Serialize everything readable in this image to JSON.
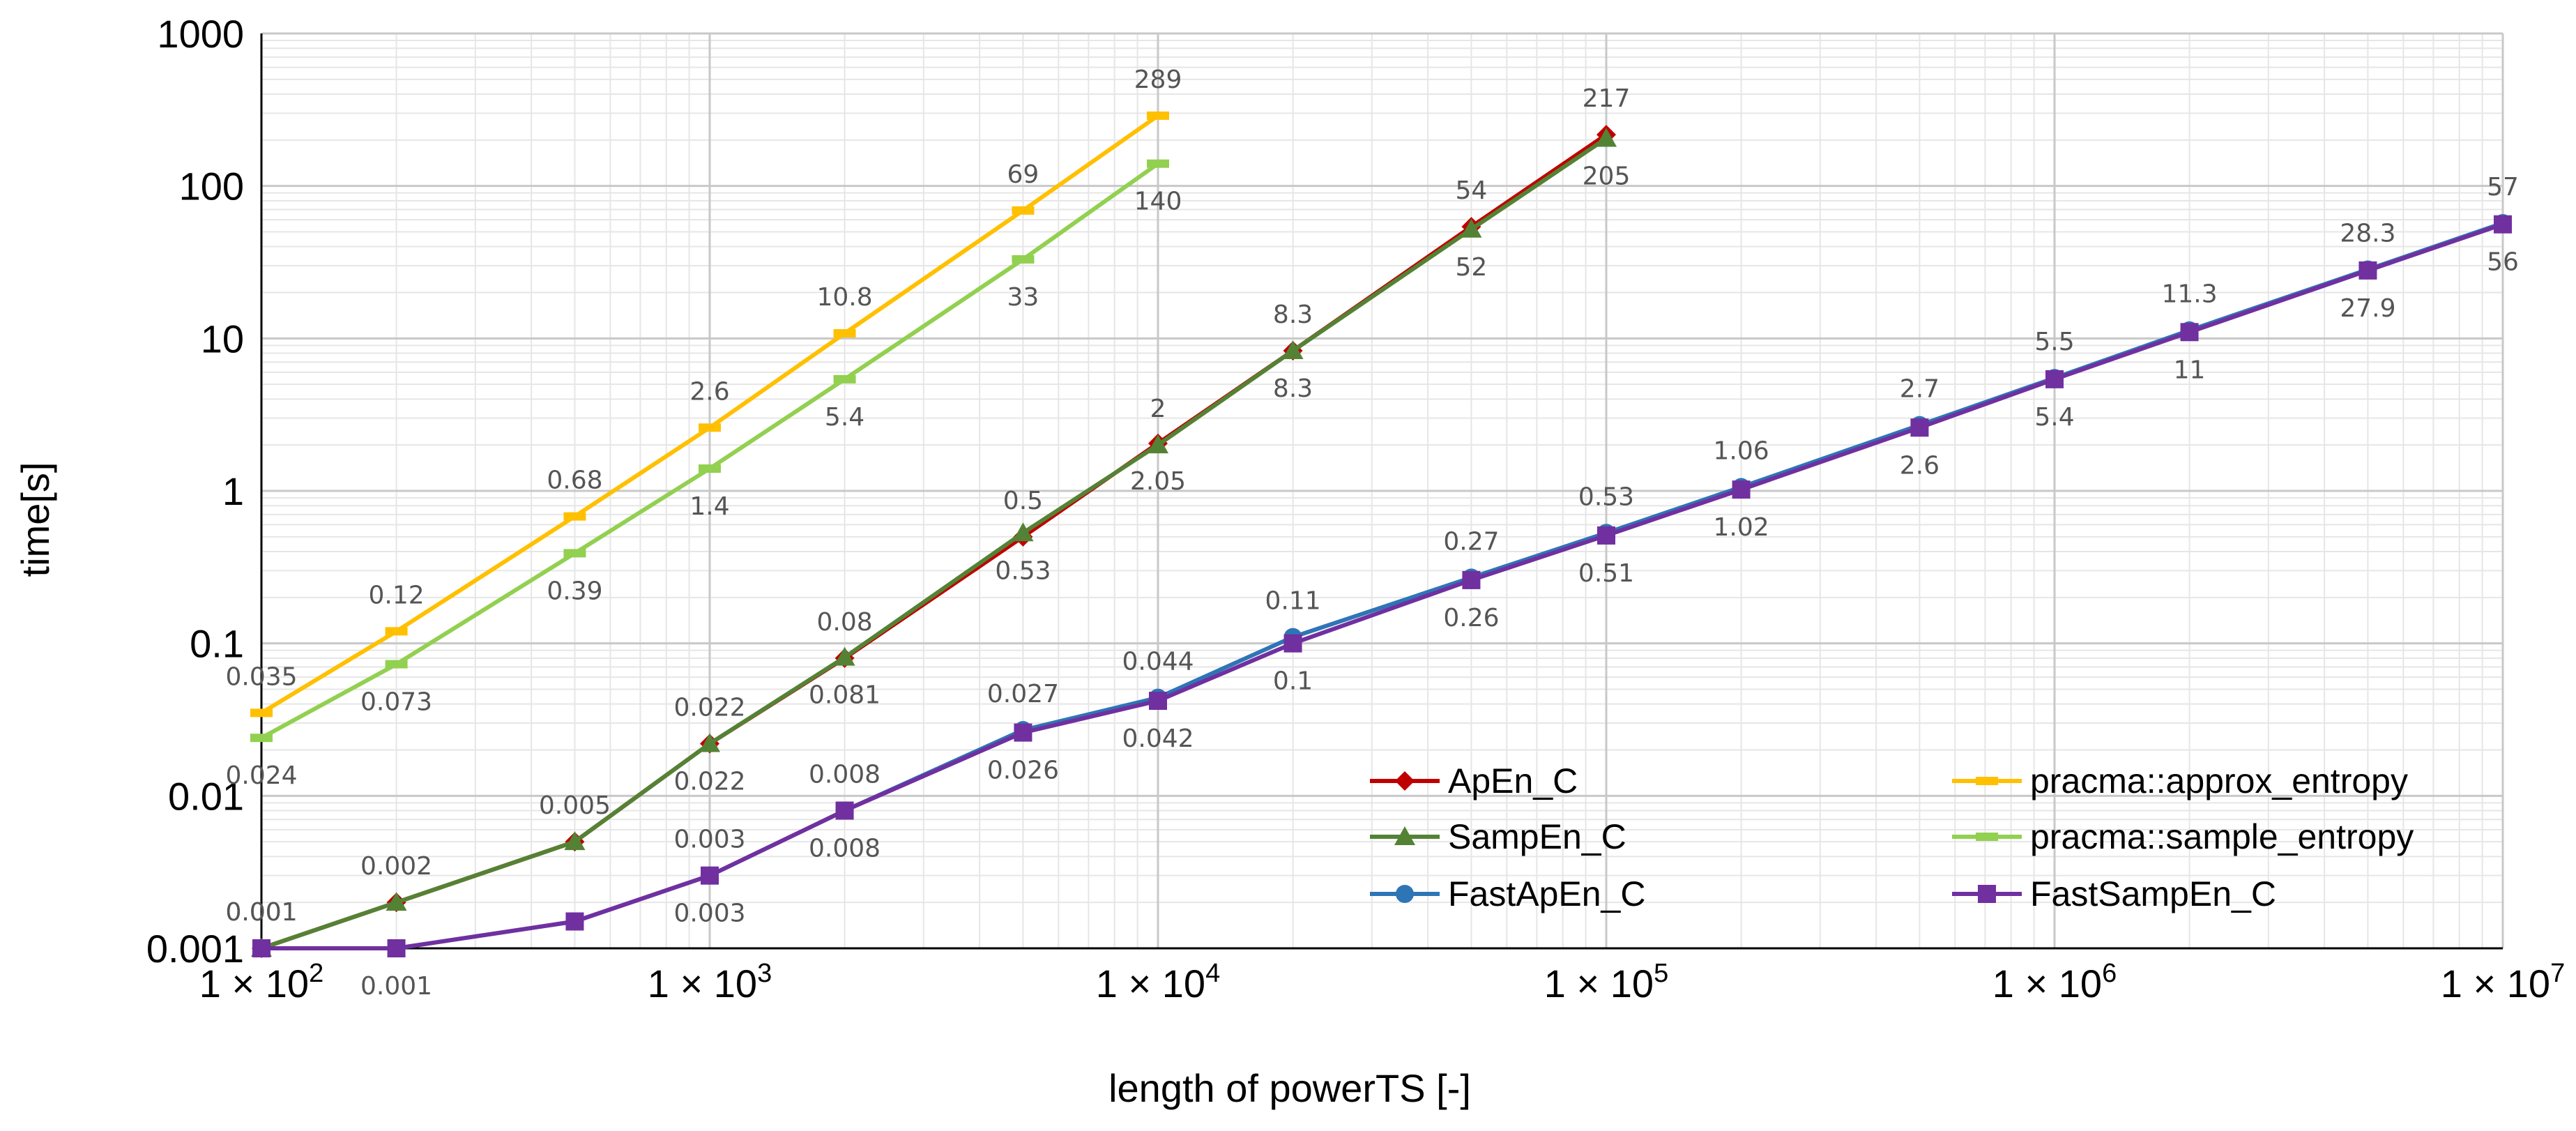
{
  "chart_data": {
    "type": "line",
    "title": "",
    "xlabel": "length of powerTS [-]",
    "ylabel": "time[s]",
    "xscale": "log",
    "yscale": "log",
    "xlim": [
      100,
      10000000
    ],
    "ylim": [
      0.001,
      1000
    ],
    "grid": true,
    "legend_position": "bottom-right",
    "y_ticks": [
      {
        "value": 0.001,
        "label": "0.001"
      },
      {
        "value": 0.01,
        "label": "0.01"
      },
      {
        "value": 0.1,
        "label": "0.1"
      },
      {
        "value": 1,
        "label": "1"
      },
      {
        "value": 10,
        "label": "10"
      },
      {
        "value": 100,
        "label": "100"
      },
      {
        "value": 1000,
        "label": "1000"
      }
    ],
    "x_ticks": [
      {
        "value": 100,
        "label": "1 × 10",
        "exp": "2"
      },
      {
        "value": 1000,
        "label": "1 × 10",
        "exp": "3"
      },
      {
        "value": 10000,
        "label": "1 × 10",
        "exp": "4"
      },
      {
        "value": 100000,
        "label": "1 × 10",
        "exp": "5"
      },
      {
        "value": 1000000,
        "label": "1 × 10",
        "exp": "6"
      },
      {
        "value": 10000000,
        "label": "1 × 10",
        "exp": "7"
      }
    ],
    "series": [
      {
        "name": "ApEn_C",
        "color": "#C00000",
        "marker": "diamond",
        "x": [
          100,
          200,
          500,
          1000,
          2000,
          5000,
          10000,
          20000,
          50000,
          100000
        ],
        "y": [
          0.001,
          0.002,
          0.005,
          0.022,
          0.08,
          0.5,
          2.05,
          8.3,
          54,
          217
        ],
        "labels": [
          "0.001",
          "0.002",
          "0.005",
          "0.022",
          "0.08",
          "0.5",
          "2.05",
          "8.3",
          "54",
          "217"
        ],
        "label_pos": [
          "above",
          "above",
          "above",
          "above",
          "above",
          "above",
          "below",
          "above",
          "above",
          "above"
        ]
      },
      {
        "name": "SampEn_C",
        "color": "#548235",
        "marker": "triangle",
        "x": [
          100,
          200,
          500,
          1000,
          2000,
          5000,
          10000,
          20000,
          50000,
          100000
        ],
        "y": [
          0.001,
          0.002,
          0.005,
          0.022,
          0.081,
          0.53,
          2,
          8.3,
          52,
          205
        ],
        "labels": [
          "0.001",
          "0.002",
          "0.005",
          "0.022",
          "0.081",
          "0.53",
          "2",
          "8.3",
          "52",
          "205"
        ],
        "label_pos": [
          "none",
          "none",
          "none",
          "below",
          "below",
          "below",
          "above",
          "below",
          "below",
          "below"
        ]
      },
      {
        "name": "FastApEn_C",
        "color": "#2E75B6",
        "marker": "circle",
        "x": [
          100,
          200,
          500,
          1000,
          2000,
          5000,
          10000,
          20000,
          50000,
          100000,
          200000,
          500000,
          1000000,
          2000000,
          5000000,
          10000000
        ],
        "y": [
          0.001,
          0.001,
          0.0015,
          0.003,
          0.008,
          0.027,
          0.044,
          0.11,
          0.27,
          0.53,
          1.06,
          2.7,
          5.5,
          11.3,
          28.3,
          57
        ],
        "labels": [
          "",
          "",
          "",
          "0.003",
          "0.008",
          "0.027",
          "0.044",
          "0.11",
          "0.27",
          "0.53",
          "1.06",
          "2.7",
          "5.5",
          "11.3",
          "28.3",
          "57"
        ],
        "label_pos": [
          "none",
          "none",
          "none",
          "above",
          "above",
          "above",
          "above",
          "above",
          "above",
          "above",
          "above",
          "above",
          "above",
          "above",
          "above",
          "above"
        ]
      },
      {
        "name": "FastSampEn_C",
        "color": "#7030A0",
        "marker": "square",
        "x": [
          100,
          200,
          500,
          1000,
          2000,
          5000,
          10000,
          20000,
          50000,
          100000,
          200000,
          500000,
          1000000,
          2000000,
          5000000,
          10000000
        ],
        "y": [
          0.001,
          0.001,
          0.0015,
          0.003,
          0.008,
          0.026,
          0.042,
          0.1,
          0.26,
          0.51,
          1.02,
          2.6,
          5.4,
          11,
          27.9,
          56
        ],
        "labels": [
          "",
          "0.001",
          "",
          "0.003",
          "0.008",
          "0.026",
          "0.042",
          "0.1",
          "0.26",
          "0.51",
          "1.02",
          "2.6",
          "5.4",
          "11",
          "27.9",
          "56"
        ],
        "label_pos": [
          "none",
          "below",
          "none",
          "below",
          "below",
          "below",
          "below",
          "below",
          "below",
          "below",
          "below",
          "below",
          "below",
          "below",
          "below",
          "below"
        ]
      },
      {
        "name": "pracma::approx_entropy",
        "color": "#FFC000",
        "marker": "dash",
        "x": [
          100,
          200,
          500,
          1000,
          2000,
          5000,
          10000
        ],
        "y": [
          0.035,
          0.12,
          0.68,
          2.6,
          10.8,
          69,
          289
        ],
        "labels": [
          "0.035",
          "0.12",
          "0.68",
          "2.6",
          "10.8",
          "69",
          "289"
        ],
        "label_pos": [
          "above",
          "above",
          "above",
          "above",
          "above",
          "above",
          "above"
        ]
      },
      {
        "name": "pracma::sample_entropy",
        "color": "#92D050",
        "marker": "dash",
        "x": [
          100,
          200,
          500,
          1000,
          2000,
          5000,
          10000
        ],
        "y": [
          0.024,
          0.073,
          0.39,
          1.4,
          5.4,
          33,
          140
        ],
        "labels": [
          "0.024",
          "0.073",
          "0.39",
          "1.4",
          "5.4",
          "33",
          "140"
        ],
        "label_pos": [
          "below",
          "below",
          "below",
          "below",
          "below",
          "below",
          "below"
        ]
      }
    ],
    "extra_labels": [
      {
        "value": "0.001",
        "x": 100,
        "y": 0.001,
        "pos": "above"
      }
    ]
  }
}
